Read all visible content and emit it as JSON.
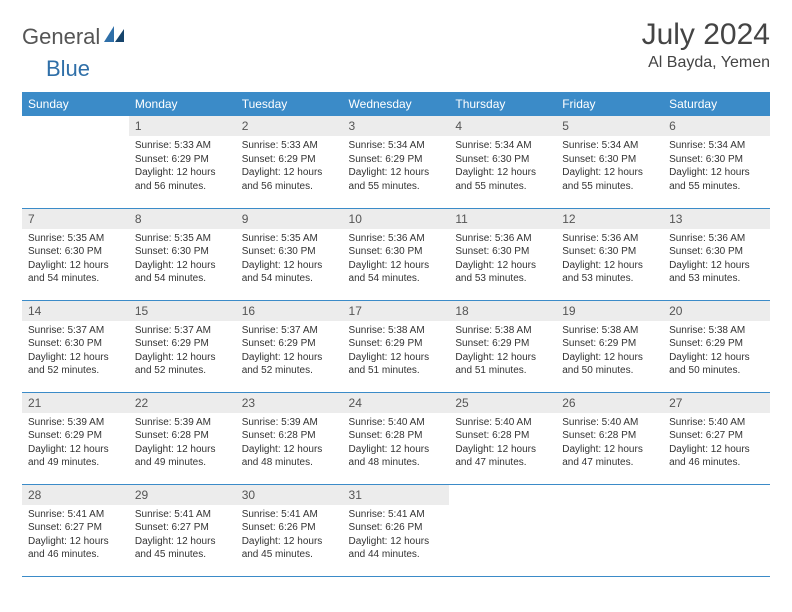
{
  "brand": {
    "part1": "General",
    "part2": "Blue"
  },
  "title": "July 2024",
  "location": "Al Bayda, Yemen",
  "colors": {
    "header_bg": "#3b8bc8",
    "header_text": "#ffffff",
    "daynum_bg": "#ececec",
    "border": "#3b8bc8",
    "brand_grey": "#555555",
    "brand_blue": "#2f6fa8"
  },
  "weekdays": [
    "Sunday",
    "Monday",
    "Tuesday",
    "Wednesday",
    "Thursday",
    "Friday",
    "Saturday"
  ],
  "layout": {
    "first_weekday_index": 1,
    "days_in_month": 31
  },
  "days": {
    "1": {
      "sunrise": "5:33 AM",
      "sunset": "6:29 PM",
      "daylight": "12 hours and 56 minutes."
    },
    "2": {
      "sunrise": "5:33 AM",
      "sunset": "6:29 PM",
      "daylight": "12 hours and 56 minutes."
    },
    "3": {
      "sunrise": "5:34 AM",
      "sunset": "6:29 PM",
      "daylight": "12 hours and 55 minutes."
    },
    "4": {
      "sunrise": "5:34 AM",
      "sunset": "6:30 PM",
      "daylight": "12 hours and 55 minutes."
    },
    "5": {
      "sunrise": "5:34 AM",
      "sunset": "6:30 PM",
      "daylight": "12 hours and 55 minutes."
    },
    "6": {
      "sunrise": "5:34 AM",
      "sunset": "6:30 PM",
      "daylight": "12 hours and 55 minutes."
    },
    "7": {
      "sunrise": "5:35 AM",
      "sunset": "6:30 PM",
      "daylight": "12 hours and 54 minutes."
    },
    "8": {
      "sunrise": "5:35 AM",
      "sunset": "6:30 PM",
      "daylight": "12 hours and 54 minutes."
    },
    "9": {
      "sunrise": "5:35 AM",
      "sunset": "6:30 PM",
      "daylight": "12 hours and 54 minutes."
    },
    "10": {
      "sunrise": "5:36 AM",
      "sunset": "6:30 PM",
      "daylight": "12 hours and 54 minutes."
    },
    "11": {
      "sunrise": "5:36 AM",
      "sunset": "6:30 PM",
      "daylight": "12 hours and 53 minutes."
    },
    "12": {
      "sunrise": "5:36 AM",
      "sunset": "6:30 PM",
      "daylight": "12 hours and 53 minutes."
    },
    "13": {
      "sunrise": "5:36 AM",
      "sunset": "6:30 PM",
      "daylight": "12 hours and 53 minutes."
    },
    "14": {
      "sunrise": "5:37 AM",
      "sunset": "6:30 PM",
      "daylight": "12 hours and 52 minutes."
    },
    "15": {
      "sunrise": "5:37 AM",
      "sunset": "6:29 PM",
      "daylight": "12 hours and 52 minutes."
    },
    "16": {
      "sunrise": "5:37 AM",
      "sunset": "6:29 PM",
      "daylight": "12 hours and 52 minutes."
    },
    "17": {
      "sunrise": "5:38 AM",
      "sunset": "6:29 PM",
      "daylight": "12 hours and 51 minutes."
    },
    "18": {
      "sunrise": "5:38 AM",
      "sunset": "6:29 PM",
      "daylight": "12 hours and 51 minutes."
    },
    "19": {
      "sunrise": "5:38 AM",
      "sunset": "6:29 PM",
      "daylight": "12 hours and 50 minutes."
    },
    "20": {
      "sunrise": "5:38 AM",
      "sunset": "6:29 PM",
      "daylight": "12 hours and 50 minutes."
    },
    "21": {
      "sunrise": "5:39 AM",
      "sunset": "6:29 PM",
      "daylight": "12 hours and 49 minutes."
    },
    "22": {
      "sunrise": "5:39 AM",
      "sunset": "6:28 PM",
      "daylight": "12 hours and 49 minutes."
    },
    "23": {
      "sunrise": "5:39 AM",
      "sunset": "6:28 PM",
      "daylight": "12 hours and 48 minutes."
    },
    "24": {
      "sunrise": "5:40 AM",
      "sunset": "6:28 PM",
      "daylight": "12 hours and 48 minutes."
    },
    "25": {
      "sunrise": "5:40 AM",
      "sunset": "6:28 PM",
      "daylight": "12 hours and 47 minutes."
    },
    "26": {
      "sunrise": "5:40 AM",
      "sunset": "6:28 PM",
      "daylight": "12 hours and 47 minutes."
    },
    "27": {
      "sunrise": "5:40 AM",
      "sunset": "6:27 PM",
      "daylight": "12 hours and 46 minutes."
    },
    "28": {
      "sunrise": "5:41 AM",
      "sunset": "6:27 PM",
      "daylight": "12 hours and 46 minutes."
    },
    "29": {
      "sunrise": "5:41 AM",
      "sunset": "6:27 PM",
      "daylight": "12 hours and 45 minutes."
    },
    "30": {
      "sunrise": "5:41 AM",
      "sunset": "6:26 PM",
      "daylight": "12 hours and 45 minutes."
    },
    "31": {
      "sunrise": "5:41 AM",
      "sunset": "6:26 PM",
      "daylight": "12 hours and 44 minutes."
    }
  },
  "labels": {
    "sunrise": "Sunrise:",
    "sunset": "Sunset:",
    "daylight": "Daylight:"
  }
}
